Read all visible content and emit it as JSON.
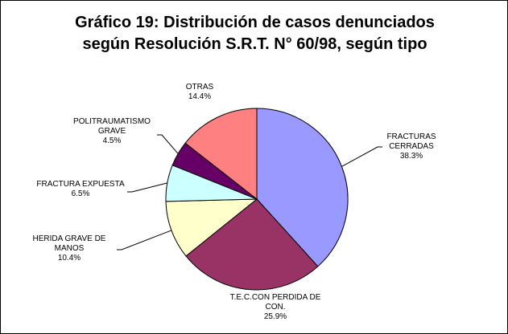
{
  "title_lines": [
    "Gráfico 19: Distribución de casos denunciados",
    "según Resolución S.R.T. N° 60/98, según tipo"
  ],
  "chart_data": {
    "type": "pie",
    "title": "Gráfico 19: Distribución de casos denunciados según Resolución S.R.T. N° 60/98, según tipo",
    "legend": "none",
    "slices": [
      {
        "name_lines": [
          "FRACTURAS",
          "CERRADAS"
        ],
        "value": 38.3,
        "label": "38.3%",
        "color": "#9999ff"
      },
      {
        "name_lines": [
          "T.E.C.CON PERDIDA DE",
          "CON."
        ],
        "value": 25.9,
        "label": "25.9%",
        "color": "#993366"
      },
      {
        "name_lines": [
          "HERIDA GRAVE DE",
          "MANOS"
        ],
        "value": 10.4,
        "label": "10.4%",
        "color": "#ffffcc"
      },
      {
        "name_lines": [
          "FRACTURA EXPUESTA"
        ],
        "value": 6.5,
        "label": "6.5%",
        "color": "#ccffff"
      },
      {
        "name_lines": [
          "POLITRAUMATISMO",
          "GRAVE"
        ],
        "value": 4.5,
        "label": "4.5%",
        "color": "#660066"
      },
      {
        "name_lines": [
          "OTRAS"
        ],
        "value": 14.4,
        "label": "14.4%",
        "color": "#ff8080"
      }
    ]
  }
}
